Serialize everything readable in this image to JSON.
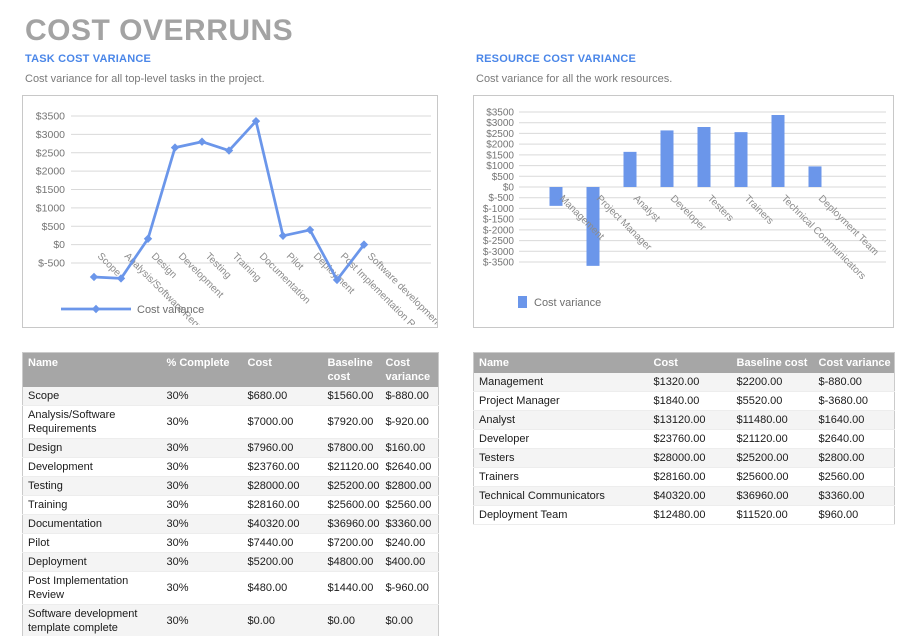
{
  "page": {
    "title": "COST OVERRUNS"
  },
  "colors": {
    "accent_blue": "#4a86e8",
    "series_blue": "#6b96ea",
    "title_gray": "#a3a3a3",
    "table_header_gray": "#a6a6a6",
    "gridline_gray": "#d9d9d9",
    "axis_text_gray": "#757575"
  },
  "sections": {
    "task": {
      "heading": "TASK COST VARIANCE",
      "description": "Cost variance for all top-level tasks in the project.",
      "legend_label": "Cost variance",
      "table": {
        "columns": [
          "Name",
          "% Complete",
          "Cost",
          "Baseline cost",
          "Cost variance"
        ],
        "rows": [
          [
            "Scope",
            "30%",
            "$680.00",
            "$1560.00",
            "$-880.00"
          ],
          [
            "Analysis/Software Requirements",
            "30%",
            "$7000.00",
            "$7920.00",
            "$-920.00"
          ],
          [
            "Design",
            "30%",
            "$7960.00",
            "$7800.00",
            "$160.00"
          ],
          [
            "Development",
            "30%",
            "$23760.00",
            "$21120.00",
            "$2640.00"
          ],
          [
            "Testing",
            "30%",
            "$28000.00",
            "$25200.00",
            "$2800.00"
          ],
          [
            "Training",
            "30%",
            "$28160.00",
            "$25600.00",
            "$2560.00"
          ],
          [
            "Documentation",
            "30%",
            "$40320.00",
            "$36960.00",
            "$3360.00"
          ],
          [
            "Pilot",
            "30%",
            "$7440.00",
            "$7200.00",
            "$240.00"
          ],
          [
            "Deployment",
            "30%",
            "$5200.00",
            "$4800.00",
            "$400.00"
          ],
          [
            "Post Implementation Review",
            "30%",
            "$480.00",
            "$1440.00",
            "$-960.00"
          ],
          [
            "Software development template complete",
            "30%",
            "$0.00",
            "$0.00",
            "$0.00"
          ]
        ]
      }
    },
    "resource": {
      "heading": "RESOURCE COST VARIANCE",
      "description": "Cost variance for all the work resources.",
      "legend_label": "Cost variance",
      "table": {
        "columns": [
          "Name",
          "Cost",
          "Baseline cost",
          "Cost variance"
        ],
        "rows": [
          [
            "Management",
            "$1320.00",
            "$2200.00",
            "$-880.00"
          ],
          [
            "Project Manager",
            "$1840.00",
            "$5520.00",
            "$-3680.00"
          ],
          [
            "Analyst",
            "$13120.00",
            "$11480.00",
            "$1640.00"
          ],
          [
            "Developer",
            "$23760.00",
            "$21120.00",
            "$2640.00"
          ],
          [
            "Testers",
            "$28000.00",
            "$25200.00",
            "$2800.00"
          ],
          [
            "Trainers",
            "$28160.00",
            "$25600.00",
            "$2560.00"
          ],
          [
            "Technical Communicators",
            "$40320.00",
            "$36960.00",
            "$3360.00"
          ],
          [
            "Deployment Team",
            "$12480.00",
            "$11520.00",
            "$960.00"
          ]
        ]
      }
    }
  },
  "chart_data": [
    {
      "type": "line",
      "title": "TASK COST VARIANCE",
      "categories": [
        "Scope",
        "Analysis/Software Requirements",
        "Design",
        "Development",
        "Testing",
        "Training",
        "Documentation",
        "Pilot",
        "Deployment",
        "Post Implementation Review",
        "Software development template complete"
      ],
      "series": [
        {
          "name": "Cost variance",
          "values": [
            -880,
            -920,
            160,
            2640,
            2800,
            2560,
            3360,
            240,
            400,
            -960,
            0
          ]
        }
      ],
      "xlabel": "",
      "ylabel": "",
      "ylim": [
        -1000,
        3500
      ],
      "ytick_values": [
        3500,
        3000,
        2500,
        2000,
        1500,
        1000,
        500,
        0,
        -500
      ],
      "ytick_labels": [
        "$3500",
        "$3000",
        "$2500",
        "$2000",
        "$1500",
        "$1000",
        "$500",
        "$0",
        "$-500"
      ],
      "grid": true,
      "marker": "diamond",
      "legend_position": "bottom-left"
    },
    {
      "type": "bar",
      "title": "RESOURCE COST VARIANCE",
      "categories": [
        "Management",
        "Project Manager",
        "Analyst",
        "Developer",
        "Testers",
        "Trainers",
        "Technical Communicators",
        "Deployment Team"
      ],
      "series": [
        {
          "name": "Cost variance",
          "values": [
            -880,
            -3680,
            1640,
            2640,
            2800,
            2560,
            3360,
            960
          ]
        }
      ],
      "xlabel": "",
      "ylabel": "",
      "ylim": [
        -3860,
        3500
      ],
      "ytick_values": [
        3500,
        3000,
        2500,
        2000,
        1500,
        1000,
        500,
        0,
        -500,
        -1000,
        -1500,
        -2000,
        -2500,
        -3000,
        -3500
      ],
      "ytick_labels": [
        "$3500",
        "$3000",
        "$2500",
        "$2000",
        "$1500",
        "$1000",
        "$500",
        "$0",
        "$-500",
        "$-1000",
        "$-1500",
        "$-2000",
        "$-2500",
        "$-3000",
        "$-3500"
      ],
      "grid": true,
      "legend_position": "bottom-left"
    }
  ]
}
